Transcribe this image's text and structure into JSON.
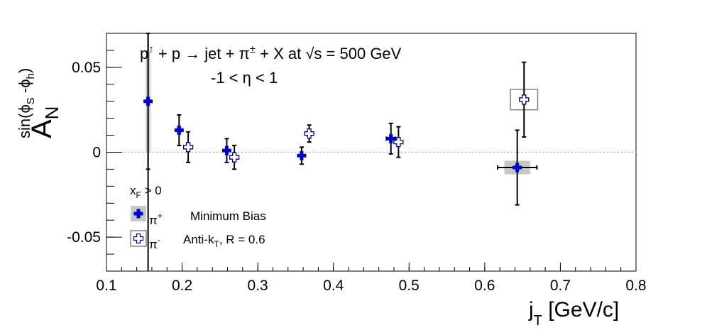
{
  "chart_data": {
    "type": "scatter",
    "title_line1_parts": {
      "p": "p",
      "up_arrow": "↑",
      "plus_p_arrow": " + p → jet + π",
      "pm": "±",
      "rest": " + X at  ",
      "sqrt": "√s",
      "energy": " = 500 GeV"
    },
    "title_line2": "-1 < η < 1",
    "xlabel": "j",
    "xlabel_sub": "T",
    "xlabel_unit": " [GeV/c]",
    "ylabel": "A",
    "ylabel_sub": "N",
    "ylabel_sup": "sin(ϕ",
    "ylabel_sup_sub1": "S",
    "ylabel_sup_mid": " -ϕ",
    "ylabel_sup_sub2": "h",
    "ylabel_sup_end": ")",
    "xlim": [
      0.1,
      0.8
    ],
    "ylim": [
      -0.07,
      0.07
    ],
    "xticks": [
      "0.1",
      "0.2",
      "0.3",
      "0.4",
      "0.5",
      "0.6",
      "0.7",
      "0.8"
    ],
    "xtick_values": [
      0.1,
      0.2,
      0.3,
      0.4,
      0.5,
      0.6,
      0.7,
      0.8
    ],
    "yticks": [
      "-0.05",
      "0",
      "0.05"
    ],
    "ytick_values": [
      -0.05,
      0,
      0.05
    ],
    "zero_line": "dotted",
    "legend": {
      "placement": "bottom-left",
      "xf_label": "x",
      "xf_sub": "F",
      "xf_rest": " > 0",
      "entries": [
        {
          "symbol": "filled-cross",
          "label": "π",
          "label_sup": "+",
          "note": "Minimum Bias"
        },
        {
          "symbol": "open-cross",
          "label": "π",
          "label_sup": "-",
          "note_main": "Anti-k",
          "note_sub": "T",
          "note_rest": ", R = 0.6"
        }
      ]
    },
    "series": [
      {
        "name": "π+",
        "color": "#0000cc",
        "marker": "filled-cross",
        "points": [
          {
            "x": 0.155,
            "y": 0.03,
            "stat_err": 0.04,
            "sys_err": 0.03,
            "sys_xhalf": 0.003
          },
          {
            "x": 0.196,
            "y": 0.013,
            "stat_err": 0.009,
            "sys_err": 0.002,
            "sys_xhalf": 0.004
          },
          {
            "x": 0.259,
            "y": 0.001,
            "stat_err": 0.007,
            "sys_err": 0.001,
            "sys_xhalf": 0.004
          },
          {
            "x": 0.358,
            "y": -0.002,
            "stat_err": 0.005,
            "sys_err": 0.001,
            "sys_xhalf": 0.004
          },
          {
            "x": 0.476,
            "y": 0.008,
            "stat_err": 0.009,
            "sys_err": 0.001,
            "sys_xhalf": 0.004,
            "x_err": 0.006
          },
          {
            "x": 0.643,
            "y": -0.009,
            "stat_err": 0.022,
            "sys_err": 0.004,
            "sys_xhalf": 0.017,
            "x_err": 0.026
          }
        ]
      },
      {
        "name": "π-",
        "color": "#000080",
        "marker": "open-cross",
        "points": [
          {
            "x": 0.208,
            "y": 0.003,
            "stat_err": 0.009,
            "sys_err": 0.001,
            "sys_xhalf": 0.004
          },
          {
            "x": 0.269,
            "y": -0.003,
            "stat_err": 0.007,
            "sys_err": 0.001,
            "sys_xhalf": 0.004
          },
          {
            "x": 0.368,
            "y": 0.011,
            "stat_err": 0.005,
            "sys_err": 0.001,
            "sys_xhalf": 0.004
          },
          {
            "x": 0.486,
            "y": 0.006,
            "stat_err": 0.009,
            "sys_err": 0.001,
            "sys_xhalf": 0.004
          },
          {
            "x": 0.652,
            "y": 0.031,
            "stat_err": 0.022,
            "sys_err": 0.006,
            "sys_xhalf": 0.018
          }
        ]
      }
    ],
    "vertical_line_x": 0.155
  }
}
